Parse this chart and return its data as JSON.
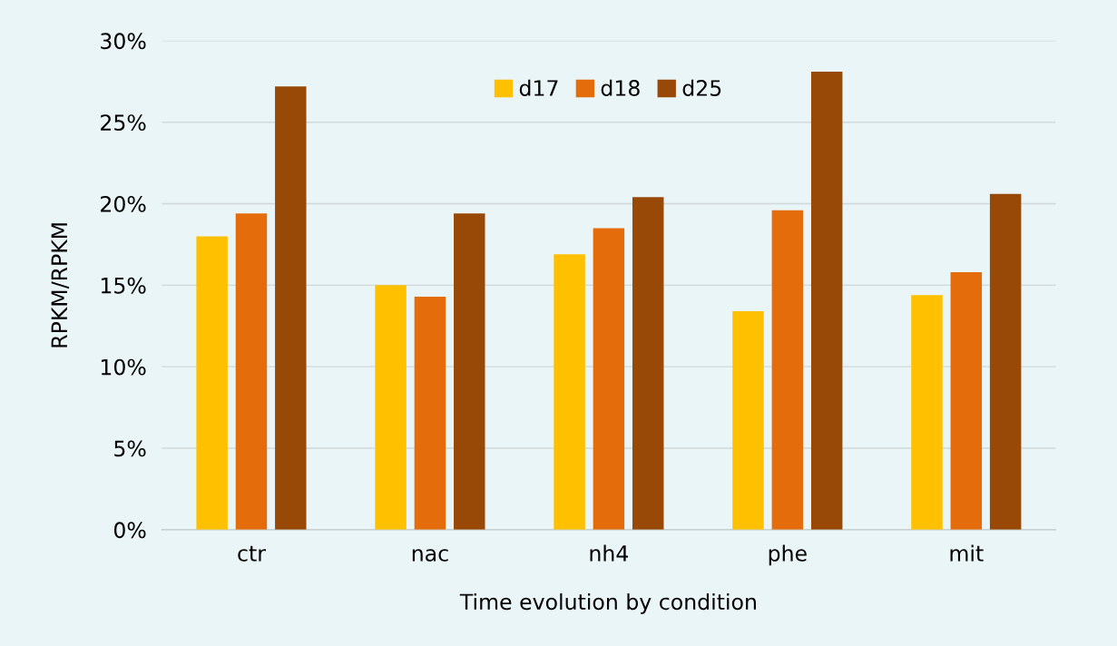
{
  "chart_data": {
    "type": "bar",
    "xlabel": "Time evolution by condition",
    "ylabel": "RPKM/RPKM",
    "categories": [
      "ctr",
      "nac",
      "nh4",
      "phe",
      "mit"
    ],
    "series": [
      {
        "name": "d17",
        "color": "#ffc000",
        "values": [
          18.0,
          15.0,
          16.9,
          13.4,
          14.4
        ]
      },
      {
        "name": "d18",
        "color": "#e46c0a",
        "values": [
          19.4,
          14.3,
          18.5,
          19.6,
          15.8
        ]
      },
      {
        "name": "d25",
        "color": "#984807",
        "values": [
          27.2,
          19.4,
          20.4,
          28.1,
          20.6
        ]
      }
    ],
    "ylim": [
      0,
      30
    ],
    "yticks": [
      {
        "value": 0,
        "label": "0%"
      },
      {
        "value": 5,
        "label": "5%"
      },
      {
        "value": 10,
        "label": "10%"
      },
      {
        "value": 15,
        "label": "15%"
      },
      {
        "value": 20,
        "label": "20%"
      },
      {
        "value": 25,
        "label": "25%"
      },
      {
        "value": 30,
        "label": "30%"
      }
    ],
    "grid": "y",
    "legend": "top"
  }
}
